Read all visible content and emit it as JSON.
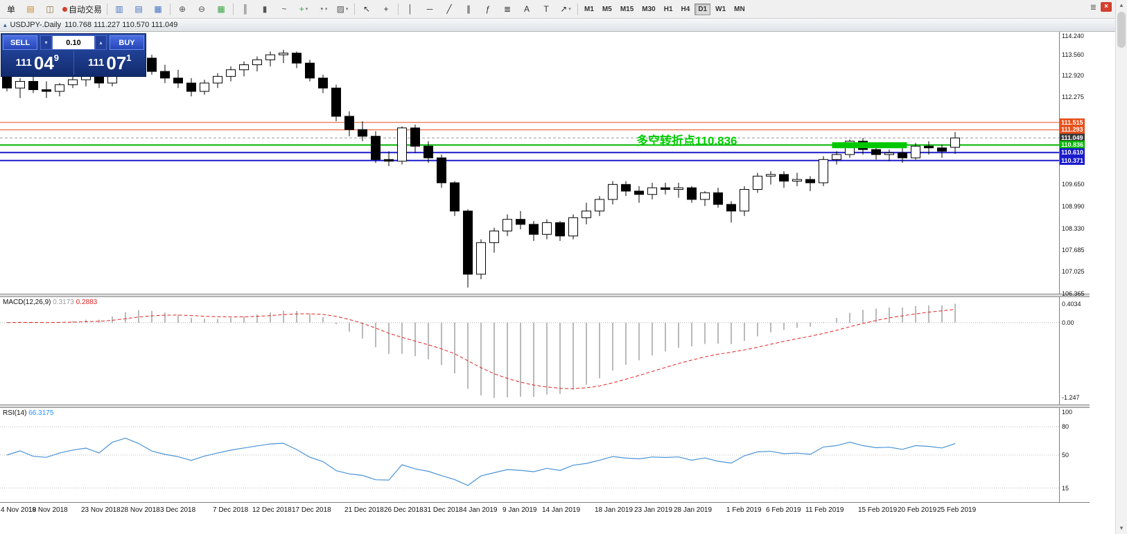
{
  "window": {
    "title_icon": "▴",
    "symbol_title": "USDJPY-.Daily",
    "ohlc": "110.768 111.227 110.570 111.049"
  },
  "toolbar": {
    "buttons": [
      {
        "name": "new-order",
        "glyph": "单",
        "color": "#222"
      },
      {
        "name": "new-chart",
        "glyph": "▤",
        "color": "#c8882a"
      },
      {
        "name": "profiles",
        "glyph": "◫",
        "color": "#8a6d3b"
      },
      {
        "name": "auto-trading",
        "glyph": "自动交易",
        "color": "#222",
        "dot": "#d2402e"
      },
      {
        "sep": true
      },
      {
        "name": "market-watch",
        "glyph": "▥",
        "color": "#4472c4"
      },
      {
        "name": "data-window",
        "glyph": "▤",
        "color": "#4472c4"
      },
      {
        "name": "navigator",
        "glyph": "▦",
        "color": "#4472c4"
      },
      {
        "sep": true
      },
      {
        "name": "zoom-in",
        "glyph": "⊕",
        "color": "#555"
      },
      {
        "name": "zoom-out",
        "glyph": "⊖",
        "color": "#555"
      },
      {
        "name": "tile-windows",
        "glyph": "▦",
        "color": "#3aa544"
      },
      {
        "sep": true
      },
      {
        "name": "bar-chart",
        "glyph": "║",
        "color": "#555"
      },
      {
        "name": "candlestick-chart",
        "glyph": "▮",
        "color": "#555"
      },
      {
        "name": "line-chart",
        "glyph": "~",
        "color": "#555"
      },
      {
        "name": "add-indicator",
        "glyph": "+",
        "color": "#2f9e41",
        "dropdown": true
      },
      {
        "name": "periods",
        "glyph": "◔",
        "color": "#555",
        "dropdown": true
      },
      {
        "name": "templates",
        "glyph": "▨",
        "color": "#555",
        "dropdown": true
      },
      {
        "sep": true
      },
      {
        "name": "cursor",
        "glyph": "↖",
        "color": "#333"
      },
      {
        "name": "crosshair",
        "glyph": "+",
        "color": "#333"
      },
      {
        "sep": true
      },
      {
        "name": "vertical-line",
        "glyph": "│",
        "color": "#333"
      },
      {
        "name": "horizontal-line",
        "glyph": "─",
        "color": "#333"
      },
      {
        "name": "trendline",
        "glyph": "╱",
        "color": "#333"
      },
      {
        "name": "channel",
        "glyph": "∥",
        "color": "#333"
      },
      {
        "name": "fibonacci",
        "glyph": "ƒ",
        "color": "#333"
      },
      {
        "name": "shapes",
        "glyph": "≣",
        "color": "#333"
      },
      {
        "name": "text",
        "glyph": "A",
        "color": "#333"
      },
      {
        "name": "text-label",
        "glyph": "T",
        "color": "#333"
      },
      {
        "name": "arrows",
        "glyph": "↗",
        "color": "#333",
        "dropdown": true
      },
      {
        "sep": true
      }
    ],
    "timeframes": [
      "M1",
      "M5",
      "M15",
      "M30",
      "H1",
      "H4",
      "D1",
      "W1",
      "MN"
    ],
    "active_timeframe": "D1",
    "menu_glyph": "≣",
    "close_glyph": "×"
  },
  "quote_panel": {
    "sell_label": "SELL",
    "buy_label": "BUY",
    "lot": "0.10",
    "spin_down": "▾",
    "spin_up": "▴",
    "bid_prefix": "111",
    "bid_big": "04",
    "bid_sup": "9",
    "ask_prefix": "111",
    "ask_big": "07",
    "ask_sup": "1"
  },
  "annotation": {
    "text": "多空转折点110.836",
    "color": "#00CE00"
  },
  "levels": [
    {
      "price": 111.515,
      "label": "111.515",
      "color": "#E8501A",
      "width": 1
    },
    {
      "price": 111.293,
      "label": "111.293",
      "color": "#E8501A",
      "width": 1
    },
    {
      "price": 111.049,
      "label": "111.049",
      "color": "#3A3A3A",
      "line_color": "#999999",
      "width": 1,
      "dash": true
    },
    {
      "price": 110.836,
      "label": "110.836",
      "color": "#00B400",
      "width": 2
    },
    {
      "price": 110.61,
      "label": "110.610",
      "color": "#1A1ACC",
      "width": 2
    },
    {
      "price": 110.371,
      "label": "110.371",
      "color": "#1A1ACC",
      "width": 2
    }
  ],
  "rectangle": {
    "from_index": 63,
    "to_index": 68,
    "price_top": 110.92,
    "price_bottom": 110.74,
    "color": "#00C800"
  },
  "main_axis_labels": [
    "114.240",
    "113.560",
    "112.920",
    "112.275",
    "109.650",
    "108.990",
    "108.330",
    "107.685",
    "107.025",
    "106.365"
  ],
  "macd": {
    "label": "MACD(12,26,9)",
    "value": "0.3173",
    "signal": "0.2883",
    "axis_max": "0.4034",
    "axis_zero": "0.00",
    "axis_min": "-1.247"
  },
  "rsi": {
    "label": "RSI(14)",
    "value": "66.3175",
    "axis_labels": [
      [
        "100",
        100
      ],
      [
        "80",
        80
      ],
      [
        "50",
        50
      ],
      [
        "15",
        15
      ]
    ],
    "levels": [
      80,
      50,
      15
    ]
  },
  "scrollbar": {
    "up": "▲",
    "down": "▼"
  },
  "chart_data": {
    "type": "candlestick",
    "symbol": "USDJPY-",
    "timeframe": "Daily",
    "title": "USDJPY-.Daily",
    "current_bar": {
      "open": 110.768,
      "high": 111.227,
      "low": 110.57,
      "close": 111.049
    },
    "y_range": [
      106.365,
      114.24
    ],
    "levels": [
      111.515,
      111.293,
      111.049,
      110.836,
      110.61,
      110.371
    ],
    "indicators": [
      {
        "name": "MACD",
        "params": [
          12,
          26,
          9
        ],
        "current": [
          0.3173,
          0.2883
        ],
        "axis": [
          0.4034,
          0.0,
          -1.247
        ]
      },
      {
        "name": "RSI",
        "params": [
          14
        ],
        "current": 66.3175,
        "axis": [
          100,
          80,
          50,
          15
        ]
      }
    ],
    "x_labels": [
      [
        "4 Nov 2018",
        0
      ],
      [
        "19 Nov 2018",
        3
      ],
      [
        "23 Nov 2018",
        7
      ],
      [
        "28 Nov 2018",
        10
      ],
      [
        "3 Dec 2018",
        13
      ],
      [
        "7 Dec 2018",
        17
      ],
      [
        "12 Dec 2018",
        20
      ],
      [
        "17 Dec 2018",
        23
      ],
      [
        "21 Dec 2018",
        27
      ],
      [
        "26 Dec 2018",
        30
      ],
      [
        "31 Dec 2018",
        33
      ],
      [
        "4 Jan 2019",
        36
      ],
      [
        "9 Jan 2019",
        39
      ],
      [
        "14 Jan 2019",
        42
      ],
      [
        "18 Jan 2019",
        46
      ],
      [
        "23 Jan 2019",
        49
      ],
      [
        "28 Jan 2019",
        52
      ],
      [
        "1 Feb 2019",
        56
      ],
      [
        "6 Feb 2019",
        59
      ],
      [
        "11 Feb 2019",
        62
      ],
      [
        "15 Feb 2019",
        66
      ],
      [
        "20 Feb 2019",
        69
      ],
      [
        "25 Feb 2019",
        72
      ]
    ],
    "candles": [
      [
        113.0,
        113.05,
        112.45,
        112.55
      ],
      [
        112.55,
        112.85,
        112.25,
        112.75
      ],
      [
        112.75,
        112.9,
        112.4,
        112.5
      ],
      [
        112.5,
        112.75,
        112.25,
        112.45
      ],
      [
        112.45,
        112.7,
        112.3,
        112.65
      ],
      [
        112.65,
        112.95,
        112.55,
        112.8
      ],
      [
        112.8,
        113.0,
        112.6,
        112.9
      ],
      [
        112.9,
        113.1,
        112.55,
        112.7
      ],
      [
        112.7,
        113.4,
        112.6,
        113.35
      ],
      [
        113.35,
        113.75,
        113.2,
        113.7
      ],
      [
        113.7,
        113.85,
        113.3,
        113.45
      ],
      [
        113.45,
        113.55,
        112.95,
        113.05
      ],
      [
        113.05,
        113.25,
        112.7,
        112.85
      ],
      [
        112.85,
        113.1,
        112.55,
        112.7
      ],
      [
        112.7,
        112.85,
        112.3,
        112.45
      ],
      [
        112.45,
        112.8,
        112.35,
        112.7
      ],
      [
        112.7,
        113.0,
        112.55,
        112.9
      ],
      [
        112.9,
        113.2,
        112.75,
        113.1
      ],
      [
        113.1,
        113.35,
        112.9,
        113.25
      ],
      [
        113.25,
        113.5,
        113.05,
        113.4
      ],
      [
        113.4,
        113.65,
        113.2,
        113.55
      ],
      [
        113.55,
        113.7,
        113.3,
        113.6
      ],
      [
        113.6,
        113.65,
        113.15,
        113.3
      ],
      [
        113.3,
        113.4,
        112.75,
        112.85
      ],
      [
        112.85,
        112.95,
        112.4,
        112.55
      ],
      [
        112.55,
        112.65,
        111.55,
        111.7
      ],
      [
        111.7,
        111.85,
        111.1,
        111.3
      ],
      [
        111.3,
        111.55,
        110.95,
        111.1
      ],
      [
        111.1,
        111.25,
        110.3,
        110.4
      ],
      [
        110.4,
        110.65,
        110.2,
        110.35
      ],
      [
        110.35,
        111.4,
        110.25,
        111.35
      ],
      [
        111.35,
        111.45,
        110.6,
        110.8
      ],
      [
        110.8,
        110.95,
        110.3,
        110.45
      ],
      [
        110.45,
        110.55,
        109.55,
        109.7
      ],
      [
        109.7,
        109.75,
        108.7,
        108.85
      ],
      [
        108.85,
        108.9,
        106.55,
        106.95
      ],
      [
        106.95,
        108.0,
        106.8,
        107.9
      ],
      [
        107.9,
        108.35,
        107.6,
        108.25
      ],
      [
        108.25,
        108.75,
        108.1,
        108.6
      ],
      [
        108.6,
        108.85,
        108.3,
        108.45
      ],
      [
        108.45,
        108.55,
        107.95,
        108.15
      ],
      [
        108.15,
        108.6,
        108.0,
        108.5
      ],
      [
        108.5,
        108.55,
        107.95,
        108.1
      ],
      [
        108.1,
        108.75,
        108.0,
        108.65
      ],
      [
        108.65,
        109.1,
        108.45,
        108.85
      ],
      [
        108.85,
        109.3,
        108.7,
        109.2
      ],
      [
        109.2,
        109.75,
        109.05,
        109.65
      ],
      [
        109.65,
        109.75,
        109.3,
        109.45
      ],
      [
        109.45,
        109.6,
        109.1,
        109.35
      ],
      [
        109.35,
        109.7,
        109.2,
        109.55
      ],
      [
        109.55,
        109.7,
        109.35,
        109.5
      ],
      [
        109.5,
        109.7,
        109.25,
        109.55
      ],
      [
        109.55,
        109.6,
        109.1,
        109.2
      ],
      [
        109.2,
        109.45,
        109.0,
        109.4
      ],
      [
        109.4,
        109.55,
        108.95,
        109.05
      ],
      [
        109.05,
        109.15,
        108.5,
        108.85
      ],
      [
        108.85,
        109.6,
        108.7,
        109.5
      ],
      [
        109.5,
        110.0,
        109.4,
        109.9
      ],
      [
        109.9,
        110.05,
        109.65,
        109.95
      ],
      [
        109.95,
        110.05,
        109.55,
        109.75
      ],
      [
        109.75,
        110.0,
        109.6,
        109.8
      ],
      [
        109.8,
        109.9,
        109.45,
        109.7
      ],
      [
        109.7,
        110.5,
        109.6,
        110.4
      ],
      [
        110.4,
        110.65,
        110.25,
        110.55
      ],
      [
        110.55,
        111.0,
        110.45,
        110.95
      ],
      [
        110.95,
        111.05,
        110.55,
        110.7
      ],
      [
        110.7,
        110.85,
        110.4,
        110.55
      ],
      [
        110.55,
        110.7,
        110.35,
        110.6
      ],
      [
        110.6,
        110.75,
        110.3,
        110.45
      ],
      [
        110.45,
        110.9,
        110.4,
        110.8
      ],
      [
        110.8,
        110.95,
        110.55,
        110.75
      ],
      [
        110.75,
        110.85,
        110.45,
        110.65
      ],
      [
        110.768,
        111.227,
        110.57,
        111.049
      ]
    ]
  }
}
